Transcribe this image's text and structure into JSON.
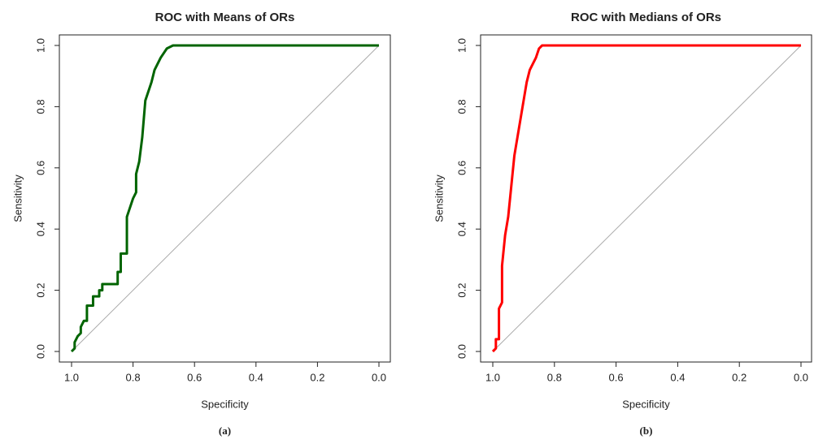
{
  "chart_data": [
    {
      "type": "line",
      "title": "ROC with Means of ORs",
      "xlabel": "Specificity",
      "ylabel": "Sensitivity",
      "caption": "(a)",
      "x": [
        1.0,
        0.99,
        0.99,
        0.98,
        0.97,
        0.97,
        0.96,
        0.95,
        0.95,
        0.93,
        0.93,
        0.91,
        0.91,
        0.9,
        0.9,
        0.85,
        0.85,
        0.84,
        0.84,
        0.84,
        0.82,
        0.82,
        0.81,
        0.8,
        0.79,
        0.79,
        0.78,
        0.77,
        0.76,
        0.74,
        0.73,
        0.71,
        0.69,
        0.67,
        0.0
      ],
      "series": [
        {
          "name": "Means of ORs",
          "color": "#006400",
          "values": [
            0,
            0.01,
            0.03,
            0.05,
            0.06,
            0.08,
            0.1,
            0.1,
            0.15,
            0.15,
            0.18,
            0.18,
            0.2,
            0.2,
            0.22,
            0.22,
            0.26,
            0.26,
            0.28,
            0.32,
            0.32,
            0.44,
            0.47,
            0.5,
            0.52,
            0.58,
            0.62,
            0.7,
            0.82,
            0.88,
            0.92,
            0.96,
            0.99,
            1.0,
            1.0
          ]
        }
      ],
      "xlim": [
        1,
        0
      ],
      "ylim": [
        0,
        1
      ],
      "xticks": [
        {
          "value": 1,
          "label": "1.0"
        },
        0.8,
        0.6,
        0.4,
        0.2,
        {
          "value": 0,
          "label": "0.0"
        }
      ],
      "yticks": [
        {
          "value": 0,
          "label": "0.0"
        },
        0.2,
        0.4,
        0.6,
        0.8,
        {
          "value": 1,
          "label": "1.0"
        }
      ]
    },
    {
      "type": "line",
      "title": "ROC with Medians of ORs",
      "xlabel": "Specificity",
      "ylabel": "Sensitivity",
      "caption": "(b)",
      "x": [
        1.0,
        0.99,
        0.99,
        0.98,
        0.98,
        0.97,
        0.97,
        0.96,
        0.95,
        0.94,
        0.93,
        0.92,
        0.91,
        0.9,
        0.89,
        0.88,
        0.86,
        0.85,
        0.84,
        0.0
      ],
      "series": [
        {
          "name": "Medians of ORs",
          "color": "#ff0000",
          "values": [
            0,
            0.01,
            0.04,
            0.04,
            0.14,
            0.16,
            0.28,
            0.38,
            0.44,
            0.54,
            0.64,
            0.7,
            0.76,
            0.82,
            0.88,
            0.92,
            0.96,
            0.99,
            1.0,
            1.0
          ]
        }
      ],
      "xlim": [
        1,
        0
      ],
      "ylim": [
        0,
        1
      ],
      "xticks": [
        {
          "value": 1,
          "label": "1.0"
        },
        0.8,
        0.6,
        0.4,
        0.2,
        {
          "value": 0,
          "label": "0.0"
        }
      ],
      "yticks": [
        {
          "value": 0,
          "label": "0.0"
        },
        0.2,
        0.4,
        0.6,
        0.8,
        {
          "value": 1,
          "label": "1.0"
        }
      ]
    }
  ]
}
